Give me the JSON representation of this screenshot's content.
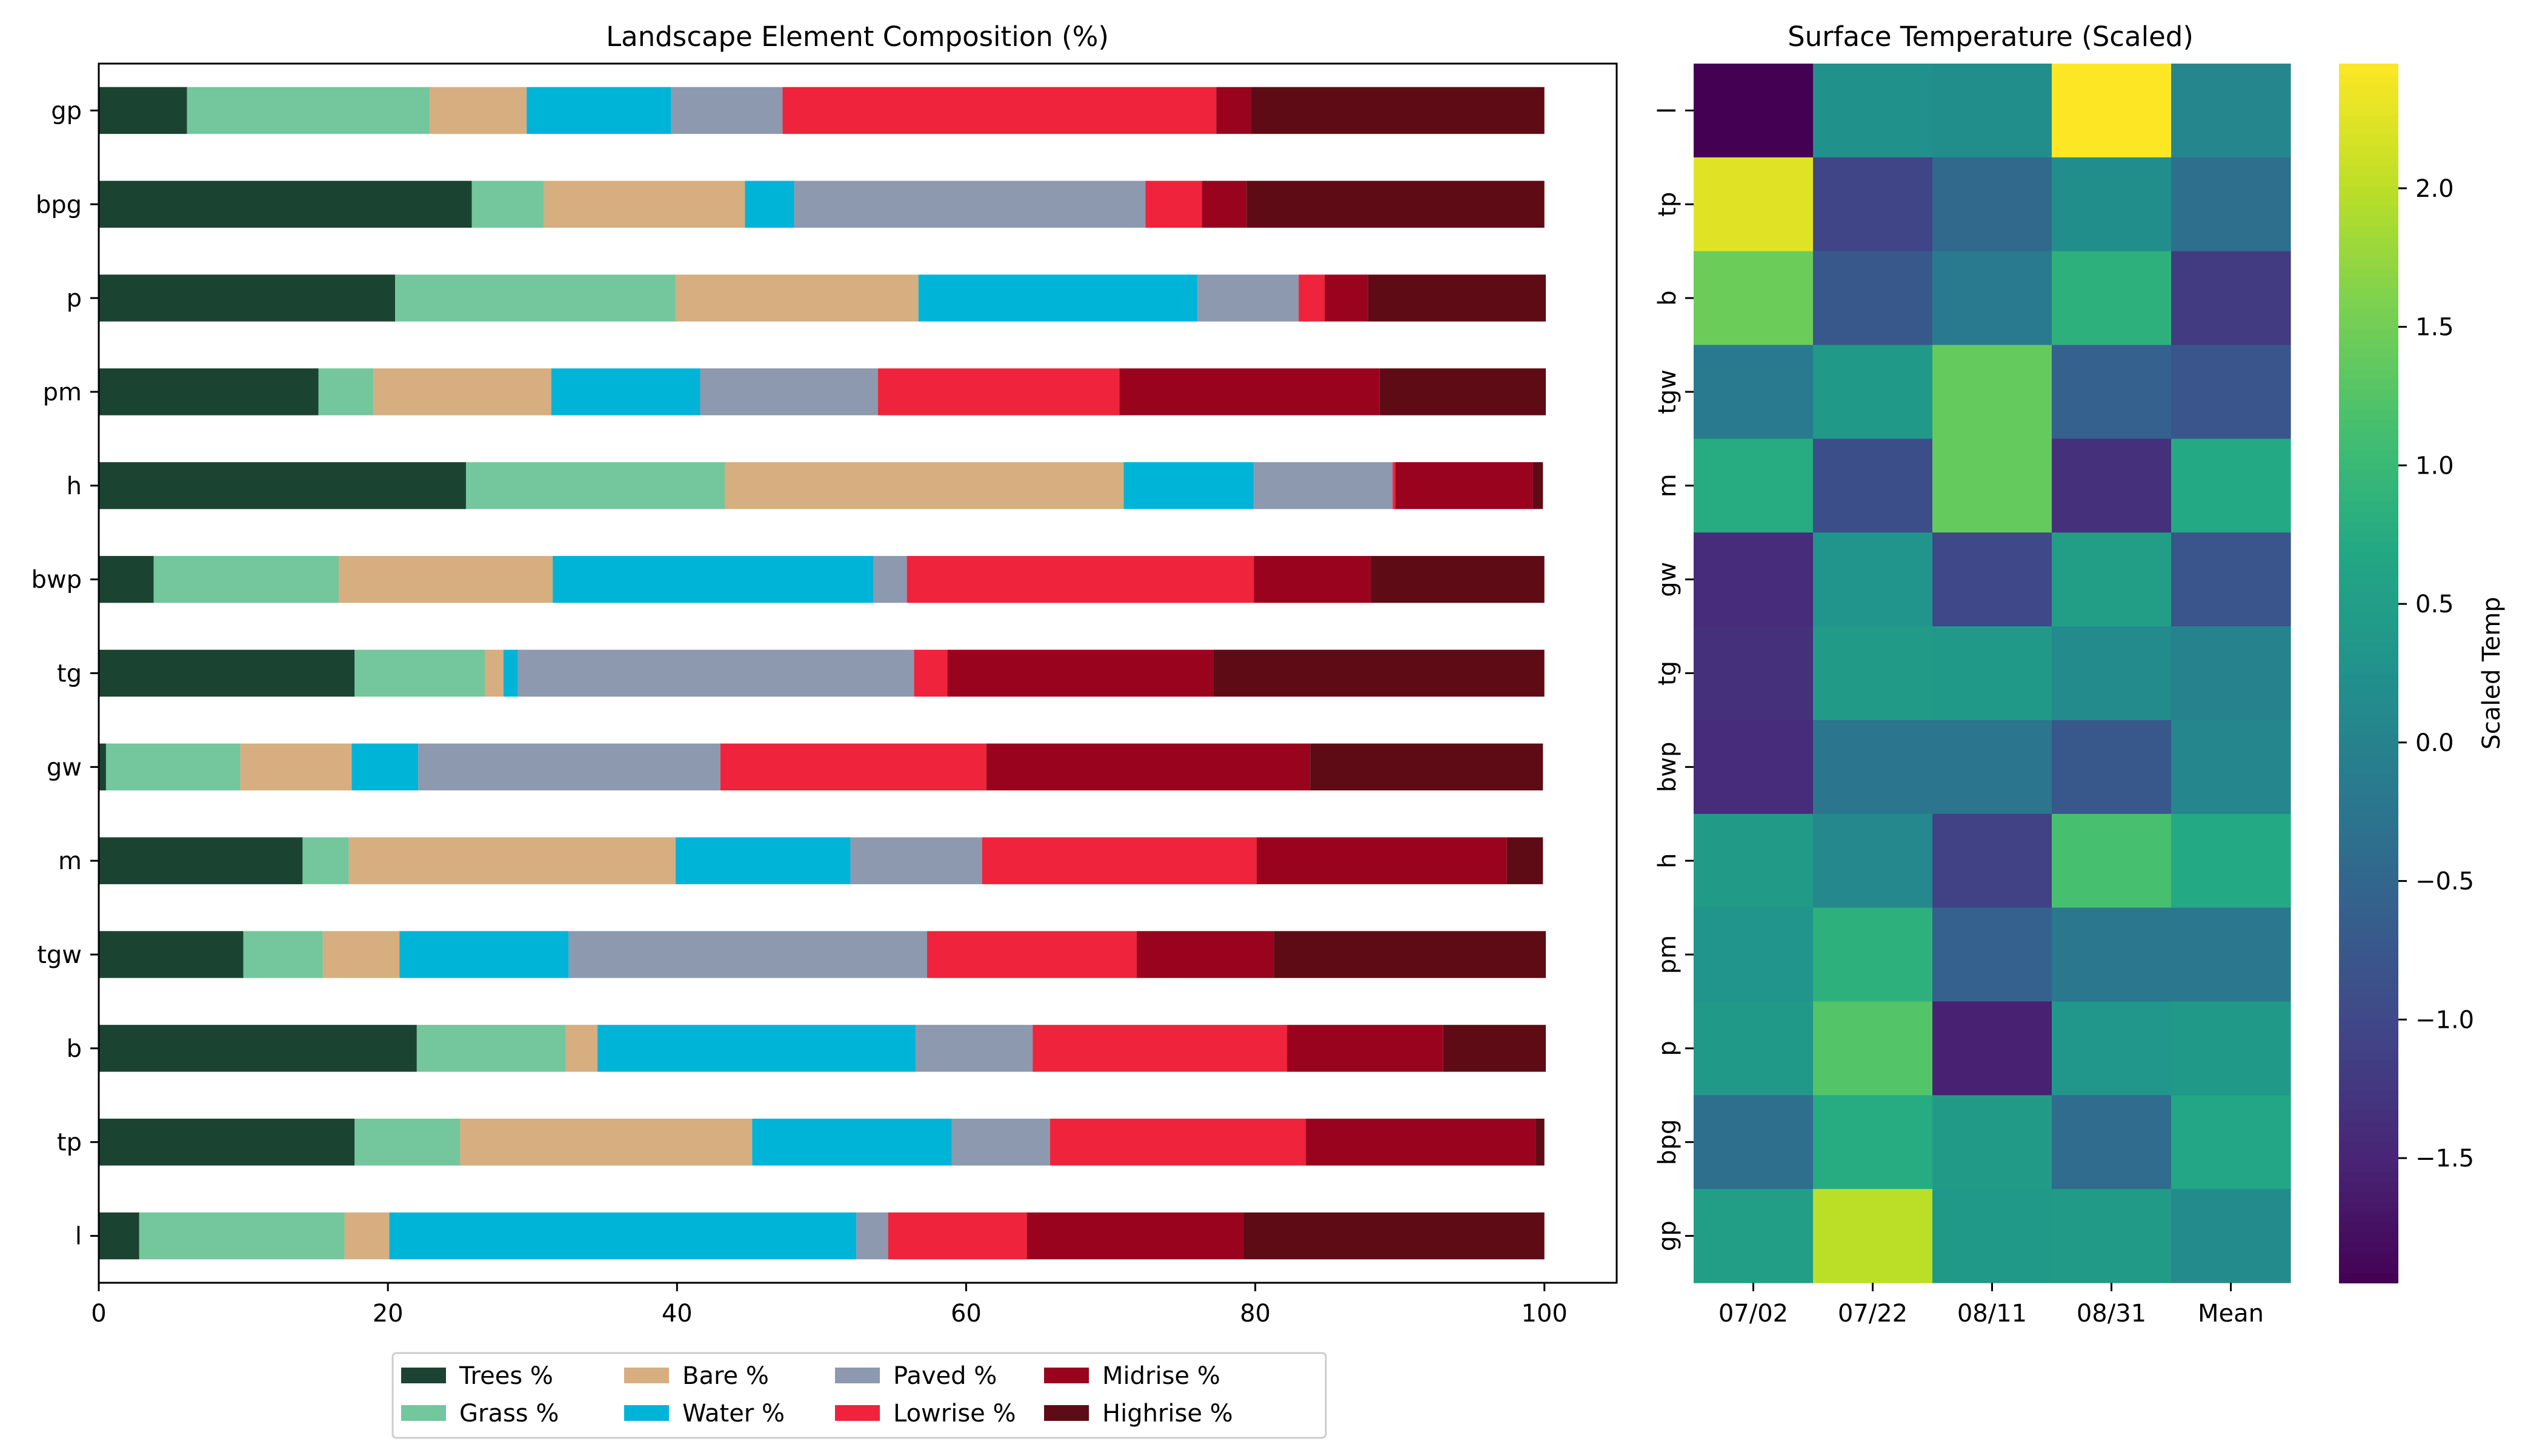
{
  "chart_data": [
    {
      "type": "bar",
      "orientation": "horizontal",
      "stacked": true,
      "title": "Landscape Element Composition (%)",
      "xlabel": "",
      "ylabel": "",
      "xlim": [
        0,
        105
      ],
      "xticks": [
        0,
        20,
        40,
        60,
        80,
        100
      ],
      "grid": false,
      "legend_position": "bottom",
      "legend_columns": 5,
      "categories": [
        "l",
        "tp",
        "b",
        "tgw",
        "m",
        "gw",
        "tg",
        "bwp",
        "h",
        "pm",
        "p",
        "bpg",
        "gp"
      ],
      "series": [
        {
          "name": "Trees %",
          "color": "#1b4332",
          "values": [
            2.8,
            17.7,
            22.0,
            10.0,
            14.1,
            0.5,
            17.7,
            3.8,
            25.4,
            15.2,
            20.5,
            25.8,
            6.1
          ]
        },
        {
          "name": "Grass %",
          "color": "#74c69d",
          "values": [
            14.2,
            7.3,
            10.3,
            5.5,
            3.2,
            9.3,
            9.0,
            12.8,
            17.9,
            3.8,
            19.4,
            5.0,
            16.8
          ]
        },
        {
          "name": "Bare %",
          "color": "#d6ae7f",
          "values": [
            3.1,
            20.2,
            2.2,
            5.3,
            22.6,
            7.7,
            1.3,
            14.8,
            27.6,
            12.3,
            16.8,
            13.9,
            6.7
          ]
        },
        {
          "name": "Water %",
          "color": "#00b4d8",
          "values": [
            32.3,
            13.8,
            22.0,
            11.7,
            12.1,
            4.6,
            1.0,
            22.2,
            9.0,
            10.3,
            19.3,
            3.4,
            10.0
          ]
        },
        {
          "name": "Paved %",
          "color": "#8d99ae",
          "values": [
            2.2,
            6.8,
            8.1,
            24.8,
            9.1,
            20.9,
            27.4,
            2.3,
            9.6,
            12.3,
            7.0,
            24.3,
            7.7
          ]
        },
        {
          "name": "Lowrise %",
          "color": "#ef233c",
          "values": [
            9.6,
            17.7,
            17.6,
            14.5,
            19.0,
            18.4,
            2.3,
            24.0,
            0.2,
            16.7,
            1.8,
            3.9,
            30.0
          ]
        },
        {
          "name": "Midrise %",
          "color": "#9a031e",
          "values": [
            15.0,
            15.9,
            10.8,
            9.5,
            17.3,
            22.4,
            18.4,
            8.1,
            9.5,
            18.0,
            3.0,
            3.1,
            2.4
          ]
        },
        {
          "name": "Highrise %",
          "color": "#5e0b15",
          "values": [
            20.8,
            0.6,
            7.1,
            18.8,
            2.5,
            16.1,
            22.9,
            12.0,
            0.7,
            11.5,
            12.3,
            20.6,
            20.3
          ]
        }
      ]
    },
    {
      "type": "heatmap",
      "title": "Surface Temperature (Scaled)",
      "xlabel": "",
      "ylabel": "",
      "x_categories": [
        "07/02",
        "07/22",
        "08/11",
        "08/31",
        "Mean"
      ],
      "y_categories": [
        "l",
        "tp",
        "b",
        "tgw",
        "m",
        "gw",
        "tg",
        "bwp",
        "h",
        "pm",
        "p",
        "bpg",
        "gp"
      ],
      "values": [
        [
          -1.95,
          0.25,
          0.2,
          2.45,
          0.05
        ],
        [
          2.25,
          -1.05,
          -0.45,
          0.2,
          -0.35
        ],
        [
          1.45,
          -0.75,
          -0.15,
          0.85,
          -1.2
        ],
        [
          -0.15,
          0.4,
          1.4,
          -0.6,
          -0.8
        ],
        [
          0.75,
          -0.9,
          1.4,
          -1.35,
          0.7
        ],
        [
          -1.4,
          0.3,
          -1.0,
          0.5,
          -0.8
        ],
        [
          -1.35,
          0.45,
          0.4,
          0.15,
          0.0
        ],
        [
          -1.4,
          -0.25,
          -0.25,
          -0.75,
          0.05
        ],
        [
          0.45,
          0.1,
          -1.1,
          1.15,
          0.7
        ],
        [
          0.3,
          0.85,
          -0.6,
          -0.2,
          -0.2
        ],
        [
          0.4,
          1.25,
          -1.55,
          0.35,
          0.4
        ],
        [
          -0.35,
          0.75,
          0.45,
          -0.4,
          0.65
        ],
        [
          0.5,
          2.0,
          0.4,
          0.45,
          0.15
        ]
      ],
      "colorscale": "viridis",
      "colorbar": {
        "label": "Scaled Temp",
        "range": [
          -1.95,
          2.45
        ],
        "ticks": [
          -1.5,
          -1.0,
          -0.5,
          0.0,
          0.5,
          1.0,
          1.5,
          2.0
        ],
        "tick_labels": [
          "−1.5",
          "−1.0",
          "−0.5",
          "0.0",
          "0.5",
          "1.0",
          "1.5",
          "2.0"
        ]
      }
    }
  ]
}
